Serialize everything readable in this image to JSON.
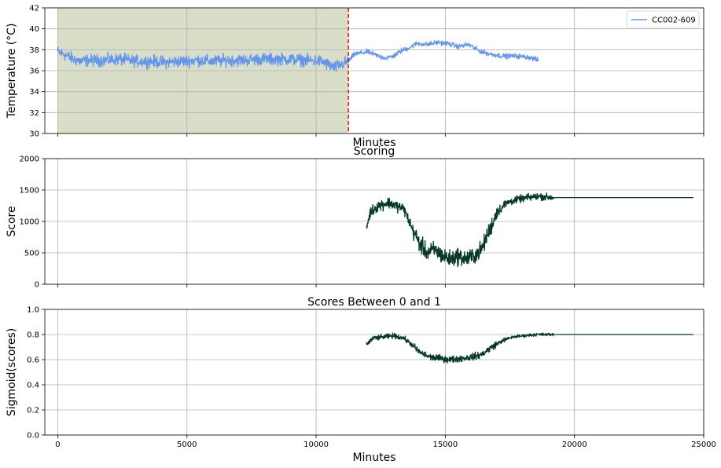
{
  "colors": {
    "temperature": "#6495ed",
    "score": "#07392a",
    "shade": "#d9dec9",
    "marker": "#e31a1c",
    "grid": "#b0b0b0"
  },
  "chart_data": [
    {
      "type": "line",
      "title": "",
      "xlabel": "Minutes",
      "ylabel": "Temperature (°C)",
      "xlim": [
        -500,
        25000
      ],
      "ylim": [
        30,
        42
      ],
      "yticks": [
        30,
        32,
        34,
        36,
        38,
        40,
        42
      ],
      "xticks": [
        0,
        5000,
        10000,
        15000,
        20000,
        25000
      ],
      "show_xtick_labels": false,
      "grid": true,
      "legend_position": "top-right",
      "shaded_region": {
        "x_start": 0,
        "x_end": 11250
      },
      "vertical_marker": {
        "x": 11250,
        "style": "dashed"
      },
      "series": [
        {
          "name": "CC002-609",
          "x_range": [
            0,
            18600
          ],
          "points": [
            [
              0,
              37.8
            ],
            [
              300,
              37.5
            ],
            [
              600,
              37.1
            ],
            [
              900,
              36.9
            ],
            [
              1200,
              37.0
            ],
            [
              1800,
              37.0
            ],
            [
              2400,
              37.1
            ],
            [
              3000,
              36.9
            ],
            [
              3600,
              36.9
            ],
            [
              4200,
              36.8
            ],
            [
              4800,
              36.9
            ],
            [
              5400,
              37.0
            ],
            [
              6000,
              36.9
            ],
            [
              6600,
              37.0
            ],
            [
              7200,
              37.0
            ],
            [
              7800,
              37.1
            ],
            [
              8400,
              37.1
            ],
            [
              9000,
              37.1
            ],
            [
              9600,
              37.0
            ],
            [
              10200,
              36.9
            ],
            [
              10700,
              36.3
            ],
            [
              11250,
              36.9
            ],
            [
              11500,
              37.6
            ],
            [
              12000,
              37.8
            ],
            [
              12400,
              37.4
            ],
            [
              12700,
              37.2
            ],
            [
              13000,
              37.4
            ],
            [
              13300,
              37.9
            ],
            [
              13600,
              38.2
            ],
            [
              13900,
              38.6
            ],
            [
              14300,
              38.5
            ],
            [
              14700,
              38.7
            ],
            [
              15100,
              38.6
            ],
            [
              15500,
              38.3
            ],
            [
              15900,
              38.5
            ],
            [
              16300,
              37.9
            ],
            [
              16700,
              37.6
            ],
            [
              17200,
              37.4
            ],
            [
              17700,
              37.4
            ],
            [
              18200,
              37.3
            ],
            [
              18600,
              37.0
            ]
          ],
          "noise": [
            0,
            0.8,
            0.8,
            0.35,
            0.3,
            0.3,
            0.3
          ]
        }
      ]
    },
    {
      "type": "line",
      "title": "Scoring",
      "xlabel": "",
      "ylabel": "Score",
      "xlim": [
        -500,
        25000
      ],
      "ylim": [
        0,
        2000
      ],
      "yticks": [
        0,
        500,
        1000,
        1500,
        2000
      ],
      "xticks": [
        0,
        5000,
        10000,
        15000,
        20000,
        25000
      ],
      "show_xtick_labels": false,
      "grid": true,
      "series": [
        {
          "name": "",
          "x_range": [
            11950,
            24600
          ],
          "points": [
            [
              11950,
              900
            ],
            [
              12100,
              1150
            ],
            [
              12400,
              1250
            ],
            [
              12800,
              1300
            ],
            [
              13100,
              1250
            ],
            [
              13400,
              1200
            ],
            [
              13700,
              900
            ],
            [
              14000,
              650
            ],
            [
              14300,
              500
            ],
            [
              14600,
              550
            ],
            [
              14900,
              450
            ],
            [
              15200,
              400
            ],
            [
              15500,
              450
            ],
            [
              15800,
              400
            ],
            [
              16100,
              450
            ],
            [
              16400,
              550
            ],
            [
              16700,
              850
            ],
            [
              17000,
              1150
            ],
            [
              17400,
              1300
            ],
            [
              17800,
              1350
            ],
            [
              18200,
              1380
            ],
            [
              18600,
              1400
            ],
            [
              19200,
              1380
            ],
            [
              24600,
              1380
            ]
          ],
          "noise": [
            130,
            200,
            200,
            140,
            0,
            0,
            0
          ]
        }
      ]
    },
    {
      "type": "line",
      "title": "Scores Between 0 and 1",
      "xlabel": "Minutes",
      "ylabel": "Sigmoid(scores)",
      "xlim": [
        -500,
        25000
      ],
      "ylim": [
        0.0,
        1.0
      ],
      "yticks": [
        0.0,
        0.2,
        0.4,
        0.6,
        0.8,
        1.0
      ],
      "ytick_labels": [
        "0.0",
        "0.2",
        "0.4",
        "0.6",
        "0.8",
        "1.0"
      ],
      "xticks": [
        0,
        5000,
        10000,
        15000,
        20000,
        25000
      ],
      "show_xtick_labels": true,
      "grid": true,
      "series": [
        {
          "name": "",
          "x_range": [
            11950,
            24600
          ],
          "points": [
            [
              11950,
              0.72
            ],
            [
              12200,
              0.77
            ],
            [
              12600,
              0.78
            ],
            [
              13000,
              0.79
            ],
            [
              13400,
              0.77
            ],
            [
              13700,
              0.72
            ],
            [
              14000,
              0.66
            ],
            [
              14400,
              0.62
            ],
            [
              14800,
              0.61
            ],
            [
              15200,
              0.6
            ],
            [
              15600,
              0.61
            ],
            [
              16000,
              0.62
            ],
            [
              16400,
              0.64
            ],
            [
              16800,
              0.7
            ],
            [
              17200,
              0.75
            ],
            [
              17600,
              0.78
            ],
            [
              18000,
              0.79
            ],
            [
              18500,
              0.8
            ],
            [
              19200,
              0.8
            ],
            [
              24600,
              0.8
            ]
          ],
          "noise": [
            0.03,
            0.04,
            0.04,
            0.03,
            0,
            0,
            0
          ]
        }
      ]
    }
  ]
}
